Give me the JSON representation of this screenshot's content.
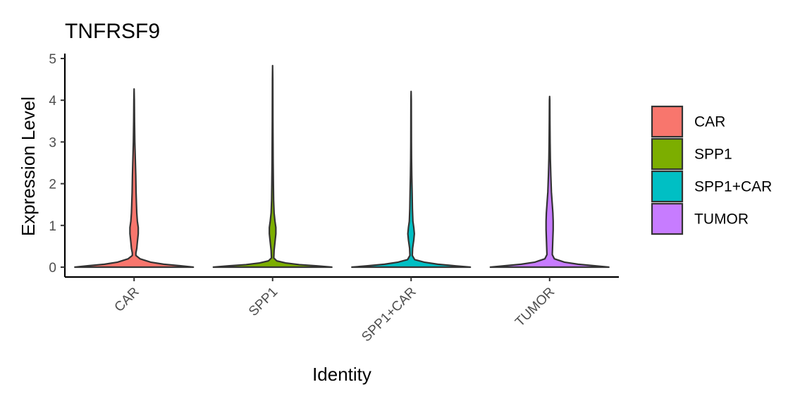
{
  "chart_data": {
    "type": "violin",
    "title": "TNFRSF9",
    "xlabel": "Identity",
    "ylabel": "Expression Level",
    "categories": [
      "CAR",
      "SPP1",
      "SPP1+CAR",
      "TUMOR"
    ],
    "ylim": [
      -0.25,
      5.05
    ],
    "yticks": [
      0,
      1,
      2,
      3,
      4,
      5
    ],
    "ytick_labels": [
      "0",
      "1",
      "2",
      "3",
      "4",
      "5"
    ],
    "grid": false,
    "legend_position": "right",
    "colors": [
      "#F8766D",
      "#7CAE00",
      "#00BFC4",
      "#C77CFF"
    ],
    "outline_color": "#333333",
    "series": [
      {
        "name": "CAR",
        "max": 4.27,
        "profile": [
          [
            0,
            1.0
          ],
          [
            0.03,
            0.8
          ],
          [
            0.07,
            0.5
          ],
          [
            0.12,
            0.28
          ],
          [
            0.2,
            0.1
          ],
          [
            0.28,
            0.03
          ],
          [
            0.34,
            0.03
          ],
          [
            0.45,
            0.045
          ],
          [
            0.6,
            0.055
          ],
          [
            0.8,
            0.07
          ],
          [
            0.95,
            0.07
          ],
          [
            1.1,
            0.055
          ],
          [
            1.3,
            0.045
          ],
          [
            1.5,
            0.04
          ],
          [
            1.8,
            0.033
          ],
          [
            2.2,
            0.028
          ],
          [
            2.6,
            0.02
          ],
          [
            3.0,
            0.012
          ],
          [
            3.5,
            0.007
          ],
          [
            4.0,
            0.004
          ],
          [
            4.27,
            0.0
          ]
        ]
      },
      {
        "name": "SPP1",
        "max": 4.83,
        "profile": [
          [
            0,
            1.0
          ],
          [
            0.03,
            0.75
          ],
          [
            0.06,
            0.45
          ],
          [
            0.1,
            0.22
          ],
          [
            0.15,
            0.07
          ],
          [
            0.22,
            0.02
          ],
          [
            0.4,
            0.025
          ],
          [
            0.6,
            0.04
          ],
          [
            0.8,
            0.055
          ],
          [
            0.95,
            0.055
          ],
          [
            1.1,
            0.04
          ],
          [
            1.3,
            0.025
          ],
          [
            1.6,
            0.017
          ],
          [
            2.0,
            0.013
          ],
          [
            2.5,
            0.009
          ],
          [
            3.0,
            0.007
          ],
          [
            3.5,
            0.005
          ],
          [
            4.0,
            0.004
          ],
          [
            4.5,
            0.003
          ],
          [
            4.83,
            0.0
          ]
        ]
      },
      {
        "name": "SPP1+CAR",
        "max": 4.21,
        "profile": [
          [
            0,
            1.0
          ],
          [
            0.03,
            0.75
          ],
          [
            0.07,
            0.45
          ],
          [
            0.12,
            0.22
          ],
          [
            0.18,
            0.06
          ],
          [
            0.28,
            0.02
          ],
          [
            0.45,
            0.025
          ],
          [
            0.65,
            0.045
          ],
          [
            0.8,
            0.055
          ],
          [
            0.95,
            0.045
          ],
          [
            1.1,
            0.03
          ],
          [
            1.4,
            0.022
          ],
          [
            1.8,
            0.017
          ],
          [
            2.2,
            0.011
          ],
          [
            2.6,
            0.007
          ],
          [
            3.0,
            0.005
          ],
          [
            3.5,
            0.004
          ],
          [
            4.0,
            0.003
          ],
          [
            4.21,
            0.0
          ]
        ]
      },
      {
        "name": "TUMOR",
        "max": 4.09,
        "profile": [
          [
            0,
            1.0
          ],
          [
            0.03,
            0.78
          ],
          [
            0.07,
            0.48
          ],
          [
            0.12,
            0.25
          ],
          [
            0.2,
            0.08
          ],
          [
            0.3,
            0.045
          ],
          [
            0.5,
            0.05
          ],
          [
            0.7,
            0.055
          ],
          [
            0.9,
            0.06
          ],
          [
            1.1,
            0.06
          ],
          [
            1.3,
            0.055
          ],
          [
            1.5,
            0.045
          ],
          [
            1.8,
            0.03
          ],
          [
            2.2,
            0.02
          ],
          [
            2.6,
            0.012
          ],
          [
            3.0,
            0.008
          ],
          [
            3.5,
            0.005
          ],
          [
            4.0,
            0.003
          ],
          [
            4.09,
            0.0
          ]
        ]
      }
    ]
  }
}
